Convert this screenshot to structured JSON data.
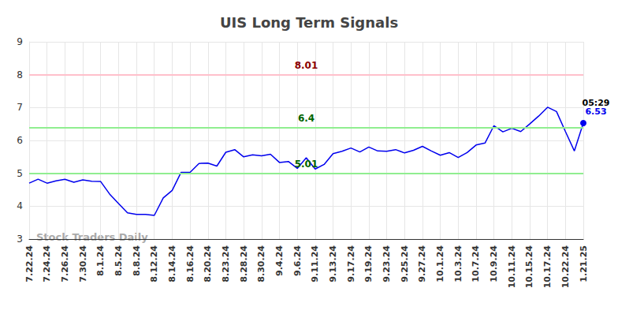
{
  "chart_data": {
    "type": "line",
    "title": "UIS Long Term Signals",
    "categories": [
      "7.22.24",
      null,
      "7.24.24",
      null,
      "7.26.24",
      null,
      "7.30.24",
      null,
      "8.1.24",
      null,
      "8.5.24",
      null,
      "8.8.24",
      null,
      "8.12.24",
      null,
      "8.14.24",
      null,
      "8.16.24",
      null,
      "8.20.24",
      null,
      "8.23.24",
      null,
      "8.28.24",
      null,
      "8.30.24",
      null,
      "9.4.24",
      null,
      "9.6.24",
      null,
      "9.11.24",
      null,
      "9.13.24",
      null,
      "9.17.24",
      null,
      "9.19.24",
      null,
      "9.23.24",
      null,
      "9.25.24",
      null,
      "9.27.24",
      null,
      "10.1.24",
      null,
      "10.3.24",
      null,
      "10.7.24",
      null,
      "10.9.24",
      null,
      "10.11.24",
      null,
      "10.15.24",
      null,
      "10.17.24",
      null,
      "10.22.24",
      null,
      "1.21.25"
    ],
    "values": [
      4.7,
      4.82,
      4.7,
      4.77,
      4.82,
      4.73,
      4.8,
      4.76,
      4.75,
      4.37,
      4.08,
      3.8,
      3.75,
      3.75,
      3.72,
      4.25,
      4.48,
      5.03,
      5.03,
      5.3,
      5.31,
      5.22,
      5.64,
      5.72,
      5.5,
      5.56,
      5.53,
      5.58,
      5.33,
      5.36,
      5.15,
      5.47,
      5.13,
      5.27,
      5.6,
      5.67,
      5.77,
      5.65,
      5.8,
      5.68,
      5.67,
      5.72,
      5.62,
      5.7,
      5.82,
      5.68,
      5.55,
      5.63,
      5.48,
      5.63,
      5.86,
      5.92,
      6.45,
      6.26,
      6.37,
      6.27,
      6.5,
      6.74,
      7.01,
      6.88,
      6.27,
      5.68,
      6.53
    ],
    "color": "#0000ee",
    "ylim": [
      3,
      9
    ],
    "yticks": [
      3,
      4,
      5,
      6,
      7,
      8,
      9
    ],
    "grid": true,
    "reference_lines": [
      {
        "value": 8.01,
        "color": "#ffc0cb"
      },
      {
        "value": 6.4,
        "color": "#90ee90"
      },
      {
        "value": 5.01,
        "color": "#90ee90"
      }
    ],
    "annotations": [
      {
        "text": "05:29"
      }
    ],
    "watermark": "Stock Traders Daily"
  }
}
